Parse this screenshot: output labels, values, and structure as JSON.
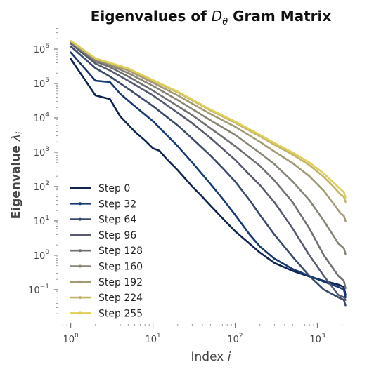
{
  "chart_data": {
    "type": "line",
    "title": {
      "prefix": "Eigenvalues of ",
      "symbol": "D",
      "subscript": "θ",
      "suffix": " Gram Matrix"
    },
    "xlabel": {
      "text": "Index ",
      "var": "i"
    },
    "ylabel": {
      "text": "Eigenvalue ",
      "var": "λ",
      "sub": "i"
    },
    "x_scale": "log",
    "y_scale": "log",
    "xlim": [
      0.75,
      2600
    ],
    "ylim": [
      0.012,
      4500000
    ],
    "x_ticks": [
      {
        "value": 1,
        "mant": "10",
        "exp": "0"
      },
      {
        "value": 10,
        "mant": "10",
        "exp": "1"
      },
      {
        "value": 100,
        "mant": "10",
        "exp": "2"
      },
      {
        "value": 1000,
        "mant": "10",
        "exp": "3"
      }
    ],
    "y_ticks": [
      {
        "value": 0.1,
        "mant": "10",
        "exp": "−1"
      },
      {
        "value": 1,
        "mant": "10",
        "exp": "0"
      },
      {
        "value": 10,
        "mant": "10",
        "exp": "1"
      },
      {
        "value": 100,
        "mant": "10",
        "exp": "2"
      },
      {
        "value": 1000,
        "mant": "10",
        "exp": "3"
      },
      {
        "value": 10000,
        "mant": "10",
        "exp": "4"
      },
      {
        "value": 100000,
        "mant": "10",
        "exp": "5"
      },
      {
        "value": 1000000,
        "mant": "10",
        "exp": "6"
      }
    ],
    "grid": false,
    "legend_position": "lower-left",
    "series": [
      {
        "name": "Step 0",
        "color": "#0e2450",
        "points": [
          [
            1,
            520000
          ],
          [
            2,
            45000
          ],
          [
            3,
            35000
          ],
          [
            4,
            11000
          ],
          [
            6,
            4000
          ],
          [
            8,
            2200
          ],
          [
            10,
            1300
          ],
          [
            12,
            1100
          ],
          [
            15,
            600
          ],
          [
            20,
            300
          ],
          [
            30,
            100
          ],
          [
            40,
            50
          ],
          [
            50,
            28
          ],
          [
            70,
            12
          ],
          [
            100,
            5
          ],
          [
            200,
            1.2
          ],
          [
            300,
            0.6
          ],
          [
            500,
            0.35
          ],
          [
            800,
            0.24
          ],
          [
            1200,
            0.18
          ],
          [
            1800,
            0.14
          ],
          [
            2100,
            0.12
          ],
          [
            2200,
            0.07
          ]
        ]
      },
      {
        "name": "Step 32",
        "color": "#163873",
        "points": [
          [
            1,
            800000
          ],
          [
            2,
            120000
          ],
          [
            3,
            110000
          ],
          [
            4,
            50000
          ],
          [
            6,
            22000
          ],
          [
            10,
            8000
          ],
          [
            15,
            3000
          ],
          [
            20,
            1500
          ],
          [
            30,
            500
          ],
          [
            50,
            120
          ],
          [
            70,
            45
          ],
          [
            100,
            15
          ],
          [
            150,
            4
          ],
          [
            200,
            1.8
          ],
          [
            300,
            0.8
          ],
          [
            500,
            0.4
          ],
          [
            800,
            0.25
          ],
          [
            1200,
            0.17
          ],
          [
            1800,
            0.12
          ],
          [
            2100,
            0.1
          ],
          [
            2200,
            0.06
          ]
        ]
      },
      {
        "name": "Step 64",
        "color": "#3a4a6e",
        "points": [
          [
            1,
            1200000
          ],
          [
            2,
            280000
          ],
          [
            3,
            160000
          ],
          [
            5,
            70000
          ],
          [
            10,
            22000
          ],
          [
            20,
            6000
          ],
          [
            30,
            2500
          ],
          [
            50,
            800
          ],
          [
            70,
            350
          ],
          [
            100,
            140
          ],
          [
            150,
            40
          ],
          [
            200,
            15
          ],
          [
            300,
            4
          ],
          [
            500,
            0.9
          ],
          [
            800,
            0.25
          ],
          [
            1200,
            0.1
          ],
          [
            1800,
            0.06
          ],
          [
            2100,
            0.05
          ],
          [
            2200,
            0.035
          ]
        ]
      },
      {
        "name": "Step 96",
        "color": "#565a70",
        "points": [
          [
            1,
            1450000
          ],
          [
            2,
            380000
          ],
          [
            3,
            240000
          ],
          [
            5,
            120000
          ],
          [
            10,
            45000
          ],
          [
            20,
            14000
          ],
          [
            30,
            7000
          ],
          [
            50,
            2600
          ],
          [
            100,
            600
          ],
          [
            150,
            220
          ],
          [
            200,
            110
          ],
          [
            300,
            35
          ],
          [
            500,
            6
          ],
          [
            800,
            1
          ],
          [
            1200,
            0.25
          ],
          [
            1800,
            0.07
          ],
          [
            2100,
            0.06
          ],
          [
            2200,
            0.05
          ]
        ]
      },
      {
        "name": "Step 128",
        "color": "#6f6f72",
        "points": [
          [
            1,
            1550000
          ],
          [
            2,
            440000
          ],
          [
            3,
            300000
          ],
          [
            5,
            160000
          ],
          [
            10,
            62000
          ],
          [
            20,
            22000
          ],
          [
            30,
            12000
          ],
          [
            50,
            5000
          ],
          [
            100,
            1500
          ],
          [
            200,
            400
          ],
          [
            300,
            150
          ],
          [
            500,
            35
          ],
          [
            800,
            6
          ],
          [
            1200,
            1
          ],
          [
            1800,
            0.25
          ],
          [
            2100,
            0.18
          ],
          [
            2200,
            0.11
          ]
        ]
      },
      {
        "name": "Step 160",
        "color": "#888474",
        "points": [
          [
            1,
            1620000
          ],
          [
            2,
            480000
          ],
          [
            3,
            340000
          ],
          [
            5,
            200000
          ],
          [
            10,
            85000
          ],
          [
            20,
            33000
          ],
          [
            50,
            8500
          ],
          [
            100,
            3200
          ],
          [
            200,
            950
          ],
          [
            300,
            450
          ],
          [
            500,
            140
          ],
          [
            800,
            40
          ],
          [
            1200,
            10
          ],
          [
            1800,
            2.2
          ],
          [
            2100,
            1.6
          ],
          [
            2200,
            1.1
          ]
        ]
      },
      {
        "name": "Step 192",
        "color": "#a29a72",
        "points": [
          [
            1,
            1680000
          ],
          [
            2,
            510000
          ],
          [
            3,
            370000
          ],
          [
            5,
            240000
          ],
          [
            10,
            105000
          ],
          [
            20,
            45000
          ],
          [
            50,
            13000
          ],
          [
            100,
            5500
          ],
          [
            200,
            2000
          ],
          [
            300,
            1050
          ],
          [
            500,
            480
          ],
          [
            800,
            200
          ],
          [
            1200,
            75
          ],
          [
            1600,
            30
          ],
          [
            1900,
            17
          ],
          [
            2100,
            14
          ],
          [
            2200,
            10
          ]
        ]
      },
      {
        "name": "Step 224",
        "color": "#c2b468",
        "points": [
          [
            1,
            1720000
          ],
          [
            2,
            530000
          ],
          [
            3,
            390000
          ],
          [
            5,
            265000
          ],
          [
            10,
            120000
          ],
          [
            20,
            55000
          ],
          [
            50,
            16500
          ],
          [
            100,
            7200
          ],
          [
            200,
            2900
          ],
          [
            300,
            1650
          ],
          [
            500,
            850
          ],
          [
            800,
            420
          ],
          [
            1200,
            190
          ],
          [
            1600,
            95
          ],
          [
            1900,
            60
          ],
          [
            2100,
            50
          ],
          [
            2200,
            36
          ]
        ]
      },
      {
        "name": "Step 255",
        "color": "#e0cf56",
        "points": [
          [
            1,
            1750000
          ],
          [
            2,
            540000
          ],
          [
            3,
            400000
          ],
          [
            5,
            275000
          ],
          [
            10,
            125000
          ],
          [
            20,
            58000
          ],
          [
            50,
            17500
          ],
          [
            100,
            7800
          ],
          [
            200,
            3200
          ],
          [
            300,
            1850
          ],
          [
            500,
            980
          ],
          [
            800,
            500
          ],
          [
            1200,
            240
          ],
          [
            1600,
            125
          ],
          [
            1900,
            85
          ],
          [
            2100,
            70
          ],
          [
            2200,
            48
          ]
        ]
      }
    ]
  }
}
